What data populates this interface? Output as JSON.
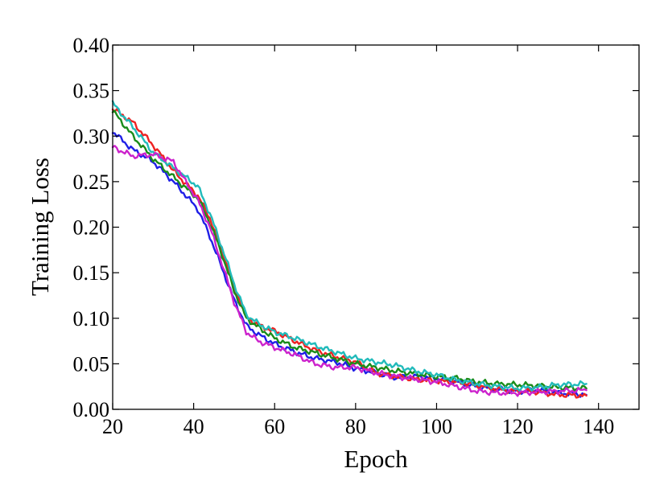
{
  "chart_data": {
    "type": "line",
    "title": "",
    "xlabel": "Epoch",
    "ylabel": "Training Loss",
    "xlim": [
      20,
      150
    ],
    "ylim": [
      0.0,
      0.4
    ],
    "xticks": [
      "20",
      "40",
      "60",
      "80",
      "100",
      "120",
      "140"
    ],
    "yticks": [
      "0.00",
      "0.05",
      "0.10",
      "0.15",
      "0.20",
      "0.25",
      "0.30",
      "0.35",
      "0.40"
    ],
    "grid": false,
    "legend": "none",
    "x": [
      20,
      25,
      30,
      35,
      38,
      41,
      44,
      47,
      50,
      53,
      56,
      60,
      65,
      70,
      75,
      80,
      85,
      90,
      95,
      100,
      105,
      110,
      115,
      120,
      125,
      130,
      137
    ],
    "series": [
      {
        "color": "#1f1fe6",
        "values": [
          0.305,
          0.285,
          0.272,
          0.25,
          0.235,
          0.22,
          0.19,
          0.155,
          0.12,
          0.092,
          0.082,
          0.072,
          0.063,
          0.056,
          0.052,
          0.045,
          0.04,
          0.035,
          0.036,
          0.034,
          0.03,
          0.025,
          0.022,
          0.02,
          0.021,
          0.018,
          0.016
        ]
      },
      {
        "color": "#ee2222",
        "values": [
          0.33,
          0.315,
          0.29,
          0.262,
          0.248,
          0.235,
          0.21,
          0.175,
          0.135,
          0.102,
          0.092,
          0.086,
          0.075,
          0.065,
          0.058,
          0.052,
          0.04,
          0.036,
          0.033,
          0.031,
          0.03,
          0.026,
          0.022,
          0.02,
          0.019,
          0.016,
          0.015
        ]
      },
      {
        "color": "#1a8c1a",
        "values": [
          0.328,
          0.3,
          0.275,
          0.255,
          0.243,
          0.232,
          0.205,
          0.17,
          0.13,
          0.1,
          0.09,
          0.078,
          0.068,
          0.062,
          0.056,
          0.05,
          0.046,
          0.042,
          0.039,
          0.036,
          0.034,
          0.03,
          0.028,
          0.027,
          0.026,
          0.024,
          0.023
        ]
      },
      {
        "color": "#22bbbb",
        "values": [
          0.336,
          0.31,
          0.282,
          0.265,
          0.255,
          0.245,
          0.215,
          0.178,
          0.138,
          0.104,
          0.094,
          0.085,
          0.078,
          0.07,
          0.063,
          0.056,
          0.052,
          0.048,
          0.042,
          0.038,
          0.032,
          0.028,
          0.025,
          0.023,
          0.024,
          0.027,
          0.028
        ]
      },
      {
        "color": "#cc22cc",
        "values": [
          0.288,
          0.278,
          0.28,
          0.272,
          0.25,
          0.23,
          0.2,
          0.16,
          0.118,
          0.085,
          0.075,
          0.068,
          0.06,
          0.05,
          0.046,
          0.046,
          0.04,
          0.036,
          0.033,
          0.03,
          0.025,
          0.02,
          0.018,
          0.018,
          0.019,
          0.02,
          0.021
        ]
      }
    ]
  }
}
